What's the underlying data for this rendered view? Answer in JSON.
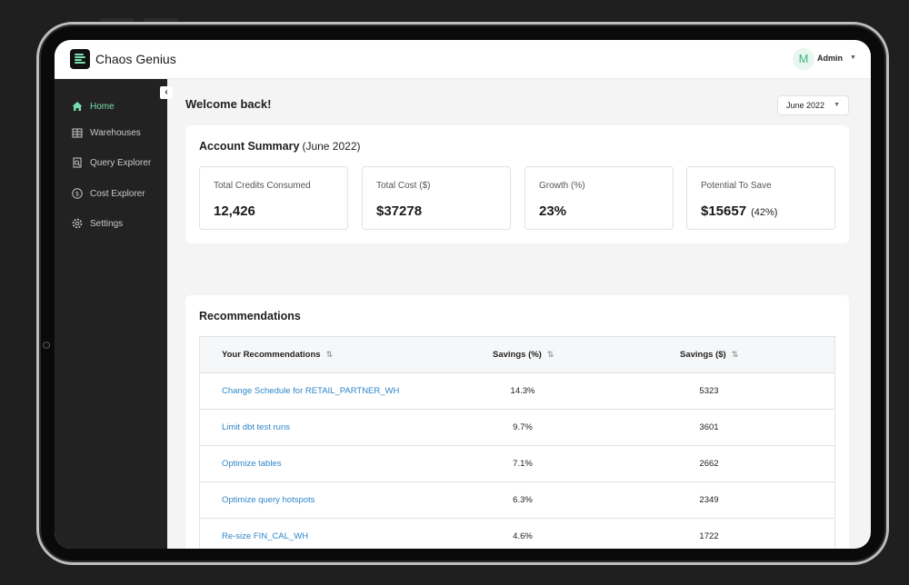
{
  "app": {
    "brand": "Chaos Genius"
  },
  "user": {
    "avatar_letter": "M",
    "name": "Admin"
  },
  "sidebar": {
    "items": [
      {
        "label": "Home",
        "icon": "home-icon",
        "active": true
      },
      {
        "label": "Warehouses",
        "icon": "warehouse-icon",
        "active": false
      },
      {
        "label": "Query Explorer",
        "icon": "query-icon",
        "active": false
      },
      {
        "label": "Cost Explorer",
        "icon": "dollar-icon",
        "active": false
      },
      {
        "label": "Settings",
        "icon": "gear-icon",
        "active": false
      }
    ]
  },
  "header": {
    "welcome": "Welcome back!",
    "month": "June 2022"
  },
  "summary": {
    "title": "Account Summary",
    "period": "(June 2022)",
    "stats": [
      {
        "label": "Total Credits Consumed",
        "value": "12,426"
      },
      {
        "label": "Total Cost ($)",
        "value": "$37278"
      },
      {
        "label": "Growth (%)",
        "value": "23%"
      },
      {
        "label": "Potential To Save",
        "value": "$15657",
        "extra": "(42%)"
      }
    ]
  },
  "recommendations": {
    "title": "Recommendations",
    "columns": [
      "Your Recommendations",
      "Savings (%)",
      "Savings ($)"
    ],
    "rows": [
      {
        "name": "Change Schedule for RETAIL_PARTNER_WH",
        "pct": "14.3%",
        "usd": "5323"
      },
      {
        "name": "Limit dbt test runs",
        "pct": "9.7%",
        "usd": "3601"
      },
      {
        "name": "Optimize tables",
        "pct": "7.1%",
        "usd": "2662"
      },
      {
        "name": "Optimize query hotspots",
        "pct": "6.3%",
        "usd": "2349"
      },
      {
        "name": "Re-size FIN_CAL_WH",
        "pct": "4.6%",
        "usd": "1722"
      }
    ]
  },
  "colors": {
    "accent": "#79dcae",
    "link": "#2f86c9",
    "sidebar": "#222222"
  }
}
